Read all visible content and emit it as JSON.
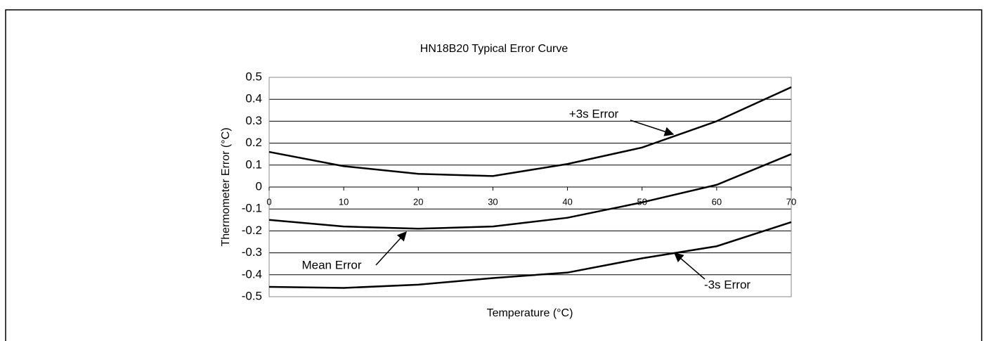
{
  "chart_data": {
    "type": "line",
    "title": "HN18B20 Typical Error Curve",
    "x_label": "Temperature (°C)",
    "y_label": "Thermometer Error (°C)",
    "x": [
      0,
      10,
      20,
      30,
      40,
      50,
      60,
      70
    ],
    "xlim": [
      0,
      70
    ],
    "xticks": [
      0,
      10,
      20,
      30,
      40,
      50,
      60,
      70
    ],
    "ylim": [
      -0.5,
      0.5
    ],
    "yticks": [
      -0.5,
      -0.4,
      -0.3,
      -0.2,
      -0.1,
      0,
      0.1,
      0.2,
      0.3,
      0.4,
      0.5
    ],
    "grid": true,
    "series": [
      {
        "name": "+3s Error",
        "color": "#000000",
        "values": [
          0.16,
          0.095,
          0.06,
          0.05,
          0.105,
          0.18,
          0.3,
          0.455
        ]
      },
      {
        "name": "Mean Error",
        "color": "#000000",
        "values": [
          -0.15,
          -0.18,
          -0.19,
          -0.18,
          -0.14,
          -0.07,
          0.01,
          0.15
        ]
      },
      {
        "name": "-3s Error",
        "color": "#000000",
        "values": [
          -0.455,
          -0.46,
          -0.445,
          -0.415,
          -0.39,
          -0.325,
          -0.27,
          -0.16
        ]
      }
    ]
  }
}
